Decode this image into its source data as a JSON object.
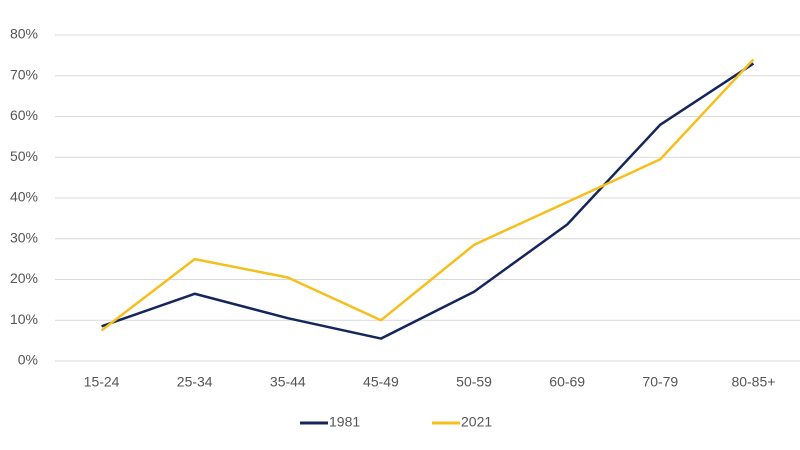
{
  "chart_data": {
    "type": "line",
    "categories": [
      "15-24",
      "25-34",
      "35-44",
      "45-49",
      "50-59",
      "60-69",
      "70-79",
      "80-85+"
    ],
    "series": [
      {
        "name": "1981",
        "color": "#14265c",
        "values": [
          8.5,
          16.5,
          10.5,
          5.5,
          17,
          33.5,
          58,
          73
        ]
      },
      {
        "name": "2021",
        "color": "#f5bf1d",
        "values": [
          7.5,
          25,
          20.5,
          10,
          28.5,
          39,
          49.5,
          74
        ]
      }
    ],
    "ylim": [
      0,
      80
    ],
    "yticks": [
      {
        "value": 0,
        "label": "0%"
      },
      {
        "value": 10,
        "label": "10%"
      },
      {
        "value": 20,
        "label": "20%"
      },
      {
        "value": 30,
        "label": "30%"
      },
      {
        "value": 40,
        "label": "40%"
      },
      {
        "value": 50,
        "label": "50%"
      },
      {
        "value": 60,
        "label": "60%"
      },
      {
        "value": 70,
        "label": "70%"
      },
      {
        "value": 80,
        "label": "80%"
      }
    ],
    "grid": true
  }
}
